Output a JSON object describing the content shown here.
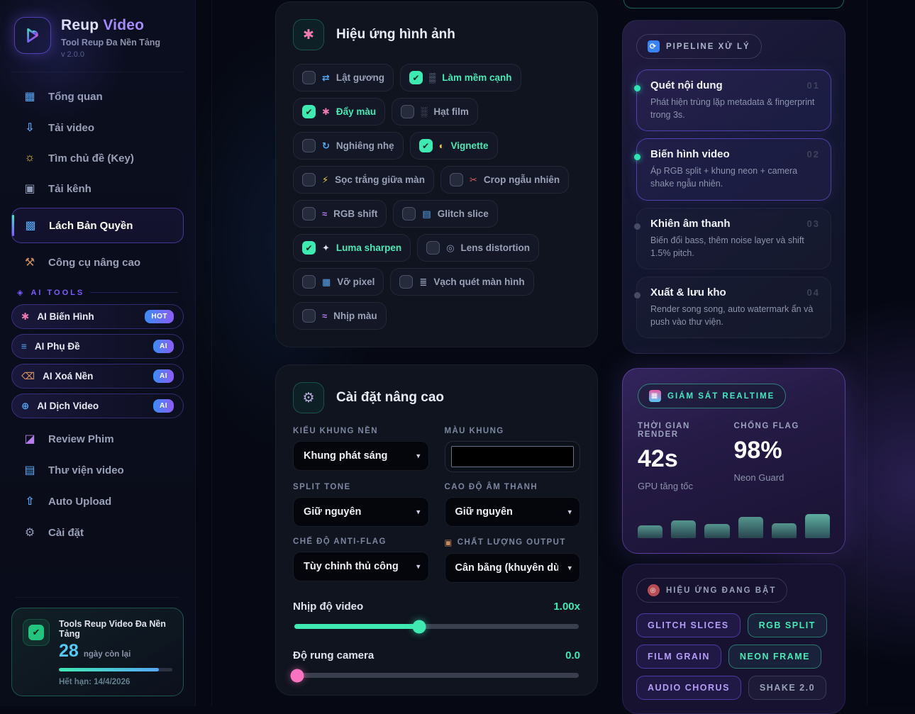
{
  "theme": {
    "accent_teal": "#3EE9B2",
    "accent_purple": "#A78BFA",
    "accent_pink": "#F973C0",
    "accent_blue": "#56C8F5",
    "badge_gradient_from": "#3C8CF5",
    "badge_gradient_to": "#8B5CF6"
  },
  "sidebar": {
    "brand": {
      "name_a": "Reup ",
      "name_b": "Video",
      "tagline": "Tool Reup Đa Nền Tảng",
      "version": "v 2.0.0"
    },
    "nav_top": [
      {
        "icon": "▦",
        "label": "Tổng quan",
        "active": false
      },
      {
        "icon": "⇩",
        "label": "Tải video",
        "active": false
      },
      {
        "icon": "☼",
        "label": "Tìm chủ đề (Key)",
        "active": false
      },
      {
        "icon": "▣",
        "label": "Tải kênh",
        "active": false
      },
      {
        "icon": "▩",
        "label": "Lách Bản Quyền",
        "active": true
      },
      {
        "icon": "⚒",
        "label": "Công cụ nâng cao",
        "active": false
      }
    ],
    "ai": {
      "icon": "◈",
      "label": "AI TOOLS",
      "items": [
        {
          "icon": "✱",
          "label": "AI Biến Hình",
          "badge": "HOT"
        },
        {
          "icon": "≡",
          "label": "AI Phụ Đề",
          "badge": "AI"
        },
        {
          "icon": "⌫",
          "label": "AI Xoá Nền",
          "badge": "AI"
        },
        {
          "icon": "⊕",
          "label": "AI Dịch Video",
          "badge": "AI"
        }
      ]
    },
    "nav_bottom": [
      {
        "icon": "◪",
        "label": "Review Phim",
        "active": false
      },
      {
        "icon": "▤",
        "label": "Thư viện video",
        "active": false
      },
      {
        "icon": "⇧",
        "label": "Auto Upload",
        "active": false
      },
      {
        "icon": "⚙",
        "label": "Cài đặt",
        "active": false
      }
    ],
    "license": {
      "check_icon": "✔",
      "title": "Tools Reup Video Đa Nền Tảng",
      "days": "28",
      "days_suffix": "ngày còn lại",
      "progress_pct": 88,
      "expiry": "Hết hạn: 14/4/2026"
    }
  },
  "effects_card": {
    "icon": "✱",
    "title": "Hiệu ứng hình ảnh",
    "options": [
      {
        "icon": "⇄",
        "label": "Lật gương",
        "checked": false
      },
      {
        "icon": "▒",
        "label": "Làm mềm cạnh",
        "checked": true
      },
      {
        "icon": "✱",
        "label": "Đẩy màu",
        "checked": true
      },
      {
        "icon": "░",
        "label": "Hạt film",
        "checked": false
      },
      {
        "icon": "↻",
        "label": "Nghiêng nhẹ",
        "checked": false
      },
      {
        "icon": "◐",
        "label": "Vignette",
        "checked": true
      },
      {
        "icon": "⚡",
        "label": "Sọc trắng giữa màn",
        "checked": false
      },
      {
        "icon": "✂",
        "label": "Crop ngẫu nhiên",
        "checked": false
      },
      {
        "icon": "≈",
        "label": "RGB shift",
        "checked": false
      },
      {
        "icon": "▤",
        "label": "Glitch slice",
        "checked": false
      },
      {
        "icon": "✦",
        "label": "Luma sharpen",
        "checked": true
      },
      {
        "icon": "◎",
        "label": "Lens distortion",
        "checked": false
      },
      {
        "icon": "▦",
        "label": "Vỡ pixel",
        "checked": false
      },
      {
        "icon": "≣",
        "label": "Vạch quét màn hình",
        "checked": false
      },
      {
        "icon": "≈",
        "label": "Nhịp màu",
        "checked": false
      }
    ],
    "check_glyph": "✔"
  },
  "settings_card": {
    "icon": "⚙",
    "title": "Cài đặt nâng cao",
    "frame_style": {
      "label": "KIỂU KHUNG NỀN",
      "value": "Khung phát sáng"
    },
    "frame_color": {
      "label": "MÀU KHUNG"
    },
    "split_tone": {
      "label": "SPLIT TONE",
      "value": "Giữ nguyên"
    },
    "audio_pitch": {
      "label": "CAO ĐỘ ÂM THANH",
      "value": "Giữ nguyên"
    },
    "anti_flag": {
      "label": "CHẾ ĐỘ ANTI-FLAG",
      "value": "Tùy chỉnh thủ công"
    },
    "output_quality": {
      "icon": "▣",
      "label": "CHẤT LƯỢNG OUTPUT",
      "value": "Cân bằng (khuyên dùng)"
    },
    "video_tempo": {
      "label": "Nhịp độ video",
      "value": "1.00x",
      "pct": 44
    },
    "camera_shake": {
      "label": "Độ rung camera",
      "value": "0.0",
      "pct": 1
    }
  },
  "pipeline_card": {
    "badge": {
      "icon": "⟳",
      "label": "PIPELINE XỬ LÝ"
    },
    "steps": [
      {
        "num": "01",
        "title": "Quét nội dung",
        "desc": "Phát hiện trùng lặp metadata & fingerprint trong 3s.",
        "active": true
      },
      {
        "num": "02",
        "title": "Biến hình video",
        "desc": "Áp RGB split + khung neon + camera shake ngẫu nhiên.",
        "active": true
      },
      {
        "num": "03",
        "title": "Khiên âm thanh",
        "desc": "Biến đổi bass, thêm noise layer và shift 1.5% pitch.",
        "active": false
      },
      {
        "num": "04",
        "title": "Xuất & lưu kho",
        "desc": "Render song song, auto watermark ẩn và push vào thư viện.",
        "active": false
      }
    ]
  },
  "realtime_card": {
    "badge": {
      "icon": "▦",
      "label": "GIÁM SÁT REALTIME"
    },
    "metrics": [
      {
        "label": "THỜI GIAN RENDER",
        "value": "42s",
        "sub": "GPU tăng tốc"
      },
      {
        "label": "CHỐNG FLAG",
        "value": "98%",
        "sub": "Neon Guard"
      }
    ],
    "bars": [
      45,
      62,
      50,
      75,
      53,
      85
    ]
  },
  "active_effects_card": {
    "badge": {
      "icon": "◎",
      "label": "HIỆU ỨNG ĐANG BẬT"
    },
    "tags": [
      {
        "label": "GLITCH SLICES",
        "style": "purple"
      },
      {
        "label": "RGB SPLIT",
        "style": "teal"
      },
      {
        "label": "FILM GRAIN",
        "style": "purple"
      },
      {
        "label": "NEON FRAME",
        "style": "teal"
      },
      {
        "label": "AUDIO CHORUS",
        "style": "purple"
      },
      {
        "label": "SHAKE 2.0",
        "style": "gray"
      }
    ]
  }
}
